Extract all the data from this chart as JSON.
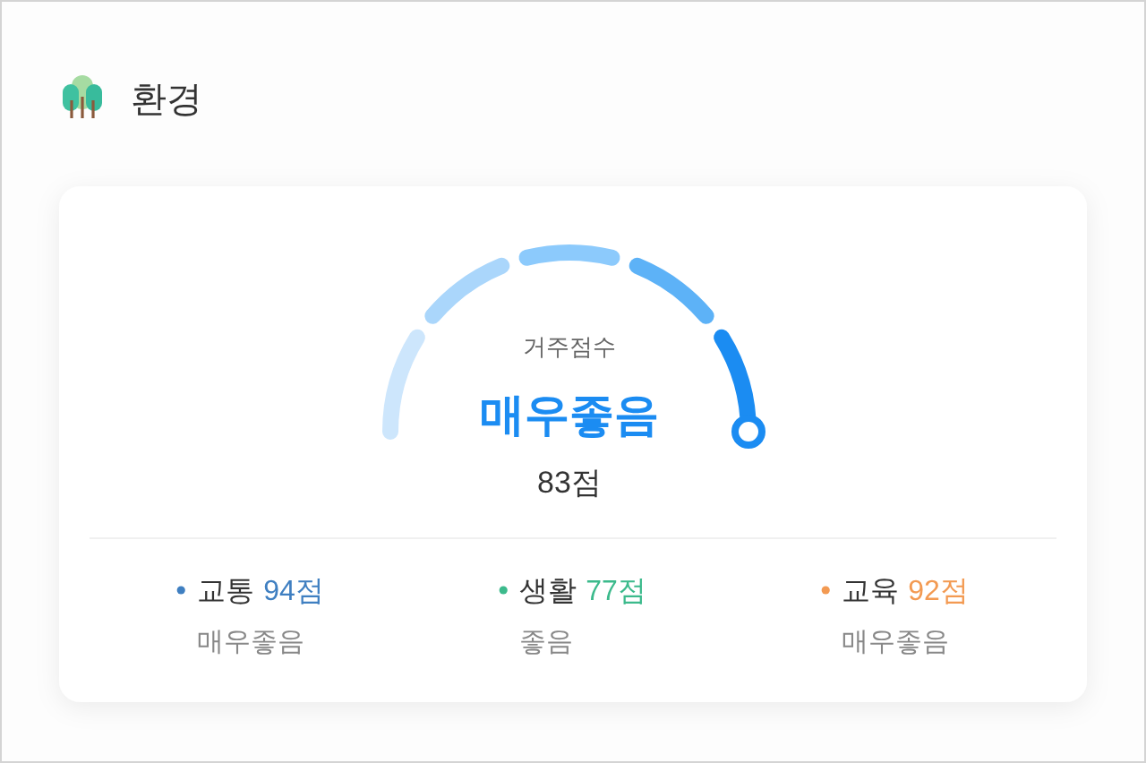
{
  "chart_data": [
    {
      "type": "other",
      "title": "환경",
      "colors": [
        "#cde6fc",
        "#aad6fb",
        "#8ccafc",
        "#5db2f7",
        "#1b8cf2"
      ],
      "annotations": [
        "거주점수",
        "매우좋음",
        "83점"
      ]
    },
    {
      "type": "other",
      "categories": [
        "교통",
        "생활",
        "교육"
      ],
      "values": [
        94,
        77,
        92
      ],
      "value_labels": [
        "94점",
        "77점",
        "92점"
      ],
      "colors": [
        "#3f7fc1",
        "#3cba8c",
        "#f39a52"
      ],
      "annotations": [
        "매우좋음",
        "좋음",
        "매우좋음"
      ]
    }
  ]
}
